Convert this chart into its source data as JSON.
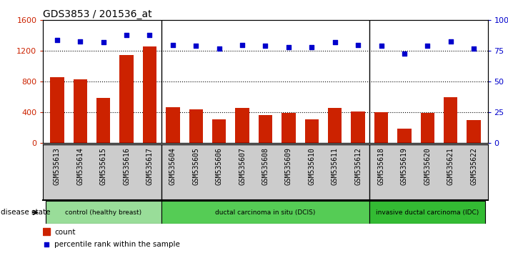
{
  "title": "GDS3853 / 201536_at",
  "samples": [
    "GSM535613",
    "GSM535614",
    "GSM535615",
    "GSM535616",
    "GSM535617",
    "GSM535604",
    "GSM535605",
    "GSM535606",
    "GSM535607",
    "GSM535608",
    "GSM535609",
    "GSM535610",
    "GSM535611",
    "GSM535612",
    "GSM535618",
    "GSM535619",
    "GSM535620",
    "GSM535621",
    "GSM535622"
  ],
  "counts": [
    860,
    830,
    590,
    1150,
    1260,
    470,
    440,
    310,
    460,
    360,
    390,
    310,
    460,
    410,
    400,
    190,
    390,
    600,
    300
  ],
  "percentiles": [
    84,
    83,
    82,
    88,
    88,
    80,
    79,
    77,
    80,
    79,
    78,
    78,
    82,
    80,
    79,
    73,
    79,
    83,
    77
  ],
  "bar_color": "#cc2200",
  "dot_color": "#0000cc",
  "ylim_left": [
    0,
    1600
  ],
  "ylim_right": [
    0,
    100
  ],
  "yticks_left": [
    0,
    400,
    800,
    1200,
    1600
  ],
  "yticks_right": [
    0,
    25,
    50,
    75,
    100
  ],
  "yticklabels_right": [
    "0",
    "25",
    "50",
    "75",
    "100%"
  ],
  "hgrid_lines": [
    400,
    800,
    1200
  ],
  "groups": [
    {
      "label": "control (healthy breast)",
      "start": 0,
      "end": 5,
      "color": "#99dd99"
    },
    {
      "label": "ductal carcinoma in situ (DCIS)",
      "start": 5,
      "end": 14,
      "color": "#55cc55"
    },
    {
      "label": "invasive ductal carcinoma (IDC)",
      "start": 14,
      "end": 19,
      "color": "#33bb33"
    }
  ],
  "group_sep": [
    4.5,
    13.5
  ],
  "disease_state_label": "disease state",
  "legend_count_label": "count",
  "legend_percentile_label": "percentile rank within the sample",
  "background_color": "#ffffff",
  "plot_bg_color": "#ffffff",
  "xtick_bg_color": "#cccccc",
  "title_fontsize": 10,
  "tick_fontsize": 8,
  "xtick_fontsize": 7
}
